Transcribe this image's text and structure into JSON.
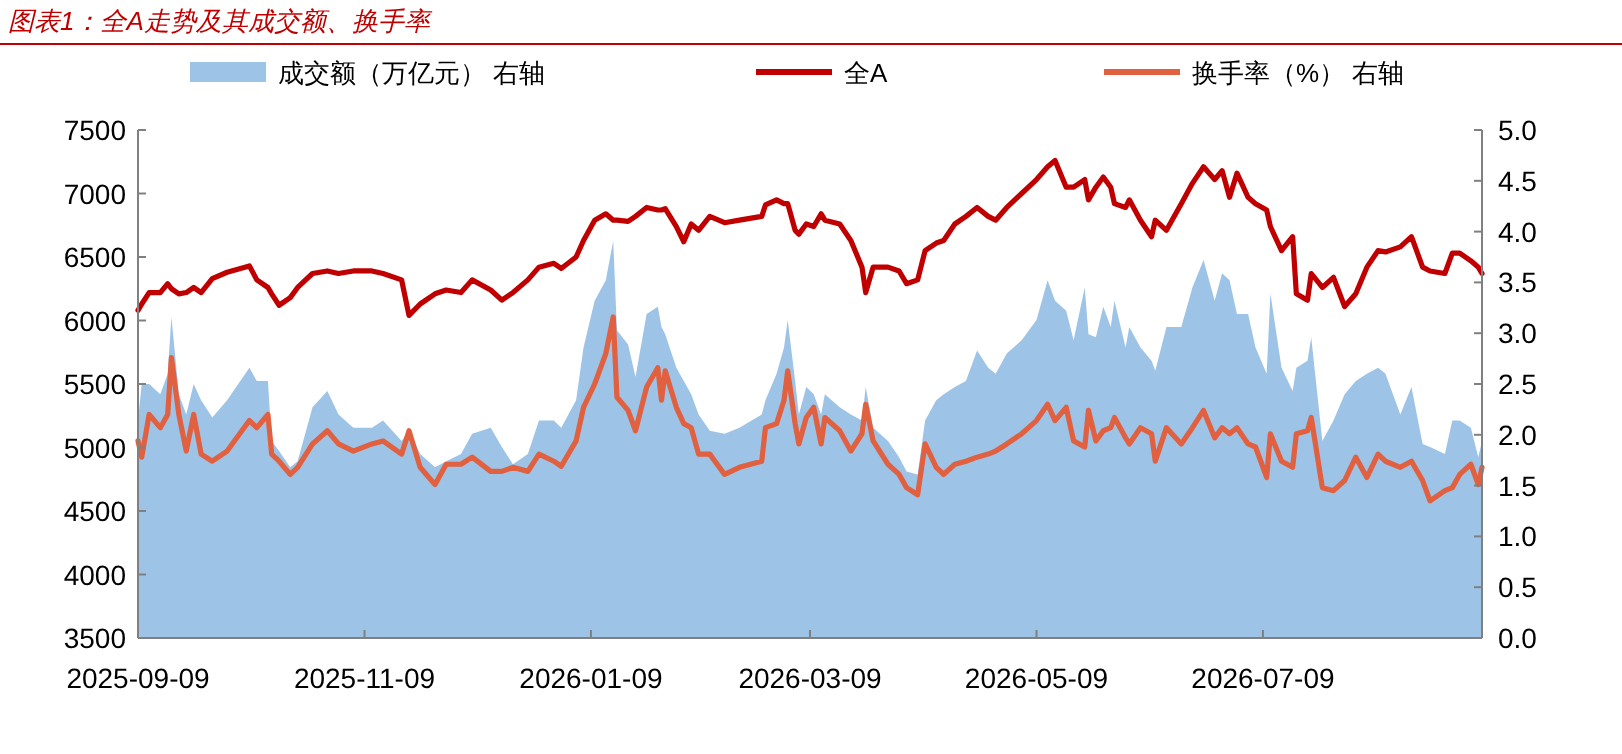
{
  "chart_data": {
    "type": "line",
    "title": "图表1：全A走势及其成交额、换手率",
    "legend": "top",
    "xlim": [
      "2025-09-09",
      "2026-09-06"
    ],
    "xticks": [
      "2025-09-09",
      "2025-11-09",
      "2026-01-09",
      "2026-03-09",
      "2026-05-09",
      "2026-07-09"
    ],
    "ylim": [
      3500,
      7500
    ],
    "yticks": [
      3500,
      4000,
      4500,
      5000,
      5500,
      6000,
      6500,
      7000,
      7500
    ],
    "y2lim": [
      0,
      5
    ],
    "y2ticks": [
      {
        "value": 0,
        "label": "0.0"
      },
      {
        "value": 0.5,
        "label": "0.5"
      },
      {
        "value": 1,
        "label": "1.0"
      },
      {
        "value": 1.5,
        "label": "1.5"
      },
      {
        "value": 2,
        "label": "2.0"
      },
      {
        "value": 2.5,
        "label": "2.5"
      },
      {
        "value": 3,
        "label": "3.0"
      },
      {
        "value": 3.5,
        "label": "3.5"
      },
      {
        "value": 4,
        "label": "4.0"
      },
      {
        "value": 4.5,
        "label": "4.5"
      },
      {
        "value": 5,
        "label": "5.0"
      }
    ],
    "x": [
      "2025-09-09",
      "2025-09-10",
      "2025-09-12",
      "2025-09-15",
      "2025-09-17",
      "2025-09-18",
      "2025-09-20",
      "2025-09-22",
      "2025-09-24",
      "2025-09-26",
      "2025-09-29",
      "2025-10-03",
      "2025-10-09",
      "2025-10-11",
      "2025-10-14",
      "2025-10-15",
      "2025-10-17",
      "2025-10-20",
      "2025-10-22",
      "2025-10-26",
      "2025-10-30",
      "2025-11-02",
      "2025-11-06",
      "2025-11-11",
      "2025-11-14",
      "2025-11-19",
      "2025-11-21",
      "2025-11-24",
      "2025-11-28",
      "2025-12-01",
      "2025-12-05",
      "2025-12-08",
      "2025-12-13",
      "2025-12-16",
      "2025-12-19",
      "2025-12-23",
      "2025-12-26",
      "2025-12-30",
      "2026-01-01",
      "2026-01-05",
      "2026-01-07",
      "2026-01-10",
      "2026-01-13",
      "2026-01-15",
      "2026-01-16",
      "2026-01-19",
      "2026-01-21",
      "2026-01-24",
      "2026-01-27",
      "2026-01-28",
      "2026-01-29",
      "2026-02-01",
      "2026-02-03",
      "2026-02-05",
      "2026-02-07",
      "2026-02-10",
      "2026-02-14",
      "2026-02-18",
      "2026-02-24",
      "2026-02-25",
      "2026-02-28",
      "2026-03-02",
      "2026-03-03",
      "2026-03-05",
      "2026-03-06",
      "2026-03-08",
      "2026-03-10",
      "2026-03-12",
      "2026-03-13",
      "2026-03-17",
      "2026-03-20",
      "2026-03-23",
      "2026-03-24",
      "2026-03-26",
      "2026-03-30",
      "2026-04-02",
      "2026-04-04",
      "2026-04-07",
      "2026-04-09",
      "2026-04-12",
      "2026-04-14",
      "2026-04-17",
      "2026-04-20",
      "2026-04-23",
      "2026-04-26",
      "2026-04-28",
      "2026-05-01",
      "2026-05-05",
      "2026-05-09",
      "2026-05-12",
      "2026-05-14",
      "2026-05-17",
      "2026-05-19",
      "2026-05-22",
      "2026-05-23",
      "2026-05-25",
      "2026-05-27",
      "2026-05-29",
      "2026-05-30",
      "2026-06-02",
      "2026-06-03",
      "2026-06-06",
      "2026-06-09",
      "2026-06-10",
      "2026-06-13",
      "2026-06-17",
      "2026-06-20",
      "2026-06-23",
      "2026-06-26",
      "2026-06-28",
      "2026-06-30",
      "2026-07-02",
      "2026-07-05",
      "2026-07-07",
      "2026-07-10",
      "2026-07-11",
      "2026-07-14",
      "2026-07-17",
      "2026-07-18",
      "2026-07-21",
      "2026-07-22",
      "2026-07-25",
      "2026-07-28",
      "2026-07-31",
      "2026-08-03",
      "2026-08-06",
      "2026-08-09",
      "2026-08-11",
      "2026-08-15",
      "2026-08-18",
      "2026-08-21",
      "2026-08-23",
      "2026-08-27",
      "2026-08-29",
      "2026-08-31",
      "2026-09-03",
      "2026-09-05",
      "2026-09-06"
    ],
    "series": [
      {
        "name": "成交额（万亿元） 右轴",
        "type": "area",
        "axis": "y2",
        "color": "#9dc3e6",
        "values": [
          2.14,
          2.5,
          2.5,
          2.4,
          2.6,
          3.16,
          2.4,
          2.2,
          2.5,
          2.34,
          2.17,
          2.34,
          2.66,
          2.53,
          2.53,
          1.94,
          1.84,
          1.68,
          1.74,
          2.27,
          2.43,
          2.2,
          2.07,
          2.07,
          2.14,
          1.94,
          2.04,
          1.81,
          1.68,
          1.74,
          1.81,
          2.01,
          2.07,
          1.88,
          1.71,
          1.81,
          2.14,
          2.14,
          2.07,
          2.34,
          2.86,
          3.32,
          3.52,
          3.91,
          3.03,
          2.89,
          2.57,
          3.19,
          3.26,
          3.06,
          2.99,
          2.66,
          2.53,
          2.4,
          2.2,
          2.04,
          2.01,
          2.07,
          2.2,
          2.34,
          2.6,
          2.86,
          3.13,
          2.53,
          2.2,
          2.47,
          2.4,
          2.2,
          2.4,
          2.27,
          2.2,
          2.14,
          2.47,
          2.07,
          1.94,
          1.78,
          1.64,
          1.61,
          2.14,
          2.34,
          2.4,
          2.47,
          2.53,
          2.83,
          2.66,
          2.6,
          2.8,
          2.93,
          3.13,
          3.52,
          3.32,
          3.22,
          2.93,
          3.45,
          2.99,
          2.96,
          3.26,
          3.06,
          3.32,
          2.86,
          3.06,
          2.86,
          2.73,
          2.63,
          3.06,
          3.06,
          3.45,
          3.72,
          3.32,
          3.59,
          3.52,
          3.19,
          3.19,
          2.86,
          2.6,
          3.39,
          2.66,
          2.43,
          2.66,
          2.73,
          2.96,
          1.94,
          2.14,
          2.4,
          2.53,
          2.6,
          2.66,
          2.6,
          2.2,
          2.47,
          1.91,
          1.88,
          1.81,
          2.14,
          2.14,
          2.07,
          1.78,
          1.94
        ]
      },
      {
        "name": "全A",
        "axis": "y",
        "color": "#c00000",
        "values": [
          6080,
          6130,
          6220,
          6220,
          6290,
          6250,
          6210,
          6220,
          6260,
          6220,
          6330,
          6380,
          6430,
          6320,
          6260,
          6210,
          6120,
          6180,
          6260,
          6370,
          6390,
          6370,
          6390,
          6390,
          6370,
          6320,
          6040,
          6130,
          6210,
          6240,
          6220,
          6320,
          6240,
          6160,
          6220,
          6320,
          6420,
          6450,
          6410,
          6500,
          6630,
          6790,
          6840,
          6790,
          6790,
          6780,
          6820,
          6890,
          6870,
          6870,
          6880,
          6740,
          6620,
          6760,
          6710,
          6820,
          6770,
          6790,
          6820,
          6910,
          6950,
          6920,
          6920,
          6710,
          6680,
          6760,
          6740,
          6840,
          6790,
          6760,
          6630,
          6420,
          6220,
          6420,
          6420,
          6390,
          6290,
          6320,
          6550,
          6610,
          6630,
          6760,
          6820,
          6890,
          6820,
          6790,
          6890,
          7000,
          7110,
          7210,
          7260,
          7050,
          7050,
          7110,
          6950,
          7050,
          7130,
          7050,
          6920,
          6890,
          6950,
          6790,
          6660,
          6790,
          6710,
          6920,
          7080,
          7210,
          7110,
          7180,
          6970,
          7160,
          6970,
          6920,
          6870,
          6740,
          6550,
          6660,
          6210,
          6160,
          6370,
          6260,
          6340,
          6110,
          6210,
          6420,
          6550,
          6540,
          6580,
          6660,
          6420,
          6390,
          6370,
          6530,
          6530,
          6470,
          6420,
          6370
        ]
      },
      {
        "name": "换手率（%） 右轴",
        "axis": "y2",
        "color": "#e0603f",
        "values": [
          1.94,
          1.78,
          2.2,
          2.07,
          2.2,
          2.76,
          2.2,
          1.84,
          2.2,
          1.81,
          1.74,
          1.84,
          2.14,
          2.07,
          2.2,
          1.81,
          1.74,
          1.61,
          1.68,
          1.91,
          2.04,
          1.91,
          1.84,
          1.91,
          1.94,
          1.81,
          2.04,
          1.68,
          1.51,
          1.71,
          1.71,
          1.78,
          1.64,
          1.64,
          1.68,
          1.64,
          1.81,
          1.74,
          1.69,
          1.94,
          2.27,
          2.5,
          2.8,
          3.16,
          2.37,
          2.24,
          2.04,
          2.47,
          2.66,
          2.34,
          2.63,
          2.27,
          2.11,
          2.07,
          1.81,
          1.81,
          1.61,
          1.68,
          1.74,
          2.07,
          2.11,
          2.34,
          2.63,
          2.11,
          1.91,
          2.17,
          2.27,
          1.91,
          2.17,
          2.04,
          1.84,
          2.01,
          2.3,
          1.94,
          1.71,
          1.61,
          1.48,
          1.41,
          1.91,
          1.68,
          1.61,
          1.71,
          1.74,
          1.78,
          1.81,
          1.84,
          1.91,
          2.01,
          2.14,
          2.3,
          2.14,
          2.27,
          1.94,
          1.88,
          2.24,
          1.94,
          2.04,
          2.07,
          2.17,
          1.97,
          1.91,
          2.07,
          2.01,
          1.74,
          2.07,
          1.91,
          2.07,
          2.24,
          1.97,
          2.07,
          2.01,
          2.07,
          1.91,
          1.88,
          1.58,
          2.01,
          1.74,
          1.68,
          2.01,
          2.04,
          2.17,
          1.48,
          1.45,
          1.55,
          1.78,
          1.58,
          1.81,
          1.74,
          1.68,
          1.74,
          1.55,
          1.35,
          1.45,
          1.48,
          1.61,
          1.71,
          1.51,
          1.68
        ]
      }
    ]
  }
}
